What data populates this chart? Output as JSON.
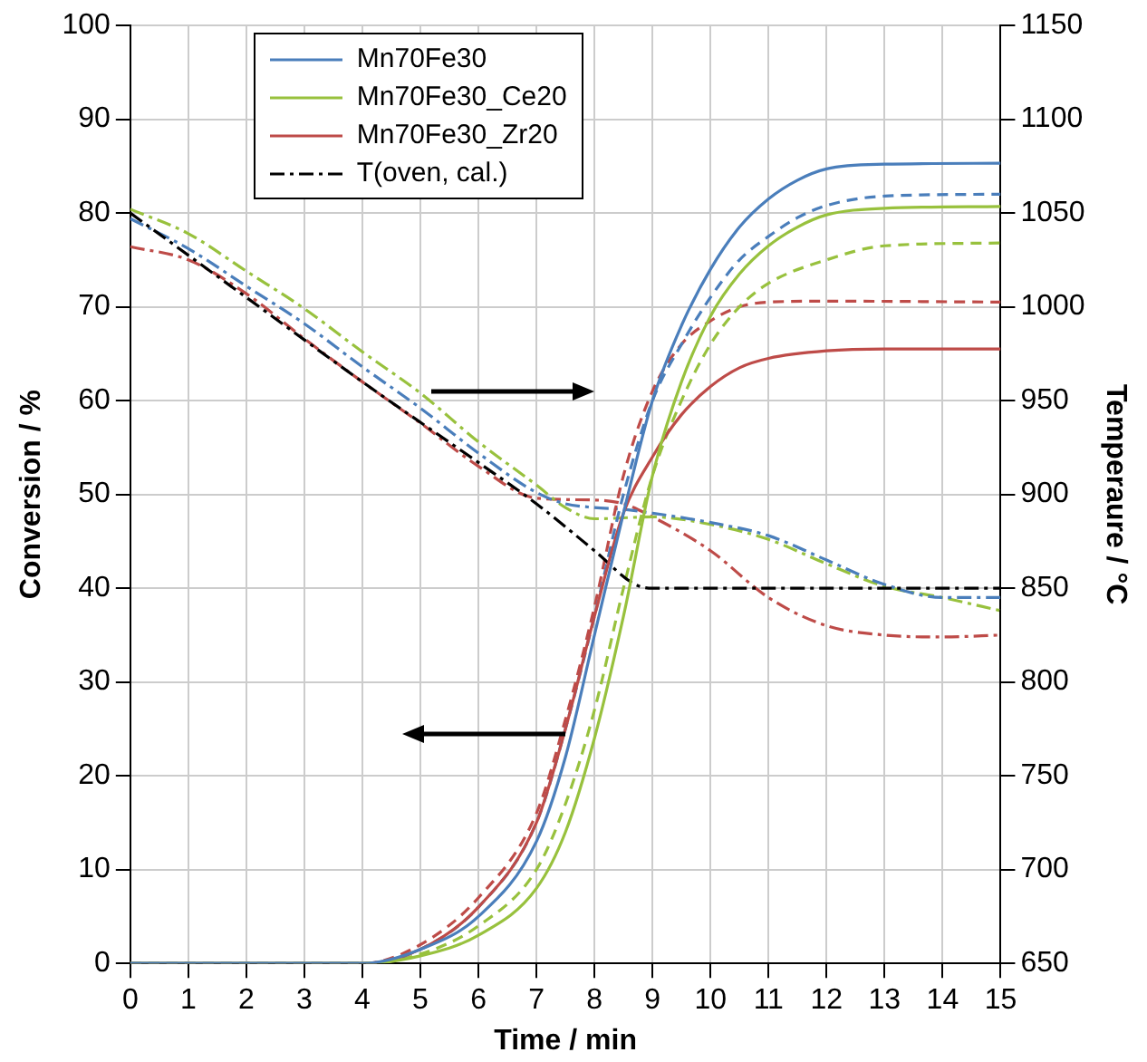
{
  "chart_data": {
    "type": "line",
    "xlabel": "Time / min",
    "ylabel": "Conversion / %",
    "y2label": "Temperaure / °C",
    "xlim": [
      0,
      15
    ],
    "xticks": [
      0,
      1,
      2,
      3,
      4,
      5,
      6,
      7,
      8,
      9,
      10,
      11,
      12,
      13,
      14,
      15
    ],
    "ylim": [
      0,
      100
    ],
    "yticks": [
      0,
      10,
      20,
      30,
      40,
      50,
      60,
      70,
      80,
      90,
      100
    ],
    "y2lim": [
      650,
      1150
    ],
    "y2ticks": [
      650,
      700,
      750,
      800,
      850,
      900,
      950,
      1000,
      1050,
      1100,
      1150
    ],
    "grid": true,
    "legend": "top left",
    "marker": "none",
    "series": [
      {
        "name": "Mn70Fe30",
        "color": "#4a7ebb",
        "line_style": "solid",
        "x": [
          0,
          4,
          5,
          6,
          7,
          7.5,
          8,
          8.5,
          9,
          9.5,
          10,
          10.5,
          11,
          11.5,
          12,
          13,
          15
        ],
        "values": [
          0,
          0,
          1.5,
          5,
          13,
          22,
          35,
          48,
          60,
          68,
          74,
          78.5,
          81.5,
          83.5,
          84.7,
          85.2,
          85.3
        ]
      },
      {
        "name": "Mn70Fe30_Ce20",
        "color": "#98c13d",
        "line_style": "solid",
        "x": [
          0,
          4,
          5,
          6,
          7,
          7.5,
          8,
          8.5,
          9,
          9.5,
          10,
          10.5,
          11,
          11.5,
          12,
          13,
          15
        ],
        "values": [
          0,
          0,
          0.8,
          3,
          8,
          14,
          24,
          37,
          52,
          62,
          69,
          73.5,
          76.5,
          78.5,
          79.8,
          80.5,
          80.7
        ]
      },
      {
        "name": "Mn70Fe30_Zr20",
        "color": "#be4b48",
        "line_style": "solid",
        "x": [
          0,
          4,
          5,
          6,
          7,
          7.5,
          8,
          8.5,
          9,
          9.5,
          10,
          10.5,
          11,
          12,
          13,
          15
        ],
        "values": [
          0,
          0,
          1.5,
          6,
          15,
          25,
          37,
          48,
          54,
          58.5,
          61.5,
          63.5,
          64.5,
          65.3,
          65.5,
          65.5
        ]
      },
      {
        "name": "T(oven, cal.)",
        "color": "#000000",
        "line_style": "dashdot",
        "axis": "y2",
        "x": [
          0,
          2,
          4,
          6,
          7,
          8,
          8.7,
          9,
          15
        ],
        "values": [
          1050,
          1005,
          960,
          917,
          895,
          870,
          852,
          850,
          850
        ]
      },
      {
        "color": "#4a7ebb",
        "line_style": "dashed",
        "x": [
          0,
          4,
          5,
          6,
          7,
          7.5,
          8,
          8.5,
          9,
          9.5,
          10,
          10.5,
          11,
          11.5,
          12,
          13,
          15
        ],
        "values": [
          0,
          0,
          1.5,
          6,
          15,
          25,
          37,
          50,
          60,
          66,
          71,
          75,
          77.5,
          79.5,
          80.8,
          81.8,
          82
        ]
      },
      {
        "color": "#98c13d",
        "line_style": "dashed",
        "x": [
          0,
          4,
          5,
          6,
          7,
          7.5,
          8,
          8.5,
          9,
          9.5,
          10,
          10.5,
          11,
          12,
          13,
          15
        ],
        "values": [
          0,
          0,
          1,
          4,
          10,
          17,
          27,
          40,
          52,
          60,
          66,
          70,
          72.5,
          75,
          76.5,
          76.8
        ]
      },
      {
        "color": "#be4b48",
        "line_style": "dashed",
        "x": [
          0,
          4,
          5,
          6,
          7,
          7.5,
          8,
          8.5,
          9,
          9.5,
          10,
          10.5,
          11,
          12,
          15
        ],
        "values": [
          0,
          0,
          2,
          7,
          16,
          26,
          38,
          52,
          61,
          66,
          68.5,
          70,
          70.5,
          70.6,
          70.5
        ]
      },
      {
        "color": "#4a7ebb",
        "line_style": "dashdot",
        "axis": "y2",
        "x": [
          0,
          1,
          2,
          3,
          4,
          5,
          6,
          7,
          7.5,
          8,
          8.5,
          9,
          10,
          11,
          12,
          13,
          14,
          15
        ],
        "values": [
          1047,
          1031,
          1011,
          991,
          968,
          946,
          922,
          901,
          895,
          893,
          892,
          890,
          885,
          878,
          865,
          852,
          845,
          845
        ]
      },
      {
        "color": "#98c13d",
        "line_style": "dashdot",
        "axis": "y2",
        "x": [
          0,
          1,
          2,
          3,
          4,
          5,
          6,
          7,
          7.5,
          8,
          9,
          10,
          11,
          12,
          13,
          14,
          15
        ],
        "values": [
          1052,
          1039,
          1019,
          999,
          976,
          954,
          928,
          905,
          893,
          887,
          888,
          884,
          876,
          863,
          851,
          845,
          838
        ]
      },
      {
        "color": "#be4b48",
        "line_style": "dashdot",
        "axis": "y2",
        "x": [
          0,
          1,
          2,
          3,
          4,
          5,
          6,
          7,
          8,
          8.5,
          9,
          10,
          11,
          12,
          13,
          14,
          15
        ],
        "values": [
          1032,
          1025,
          1007,
          983,
          960,
          938,
          915,
          898,
          897,
          895,
          888,
          870,
          845,
          830,
          825,
          824,
          825
        ]
      }
    ]
  }
}
